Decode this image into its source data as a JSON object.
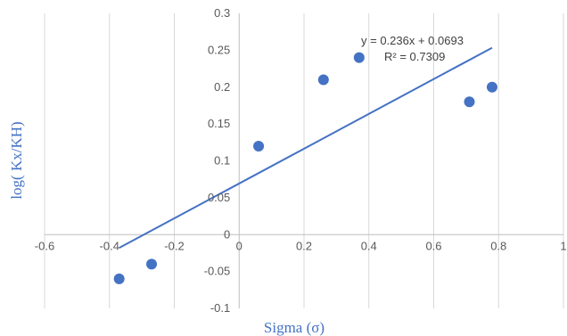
{
  "chart_data": {
    "type": "scatter",
    "xlabel": "Sigma (σ)",
    "ylabel": "log( Kx/KH)",
    "xlim": [
      -0.6,
      1
    ],
    "ylim": [
      -0.1,
      0.3
    ],
    "x_ticks": [
      "-0.6",
      "-0.4",
      "-0.2",
      "0",
      "0.2",
      "0.4",
      "0.6",
      "0.8",
      "1"
    ],
    "y_ticks": [
      "-0.1",
      "-0.05",
      "0",
      "0.05",
      "0.1",
      "0.15",
      "0.2",
      "0.25",
      "0.3"
    ],
    "grid": "vertical",
    "series": [
      {
        "color": "#4472C4",
        "points": [
          {
            "x": -0.37,
            "y": -0.06
          },
          {
            "x": -0.27,
            "y": -0.04
          },
          {
            "x": 0.06,
            "y": 0.12
          },
          {
            "x": 0.26,
            "y": 0.21
          },
          {
            "x": 0.37,
            "y": 0.24
          },
          {
            "x": 0.71,
            "y": 0.18
          },
          {
            "x": 0.78,
            "y": 0.2
          }
        ]
      }
    ],
    "trendline": {
      "type": "linear",
      "slope": 0.236,
      "intercept": 0.0693,
      "x_range": [
        -0.37,
        0.78
      ],
      "color": "#4472C4"
    },
    "annotations": {
      "equation": "y = 0.236x + 0.0693",
      "r_squared": "R² = 0.7309"
    }
  }
}
